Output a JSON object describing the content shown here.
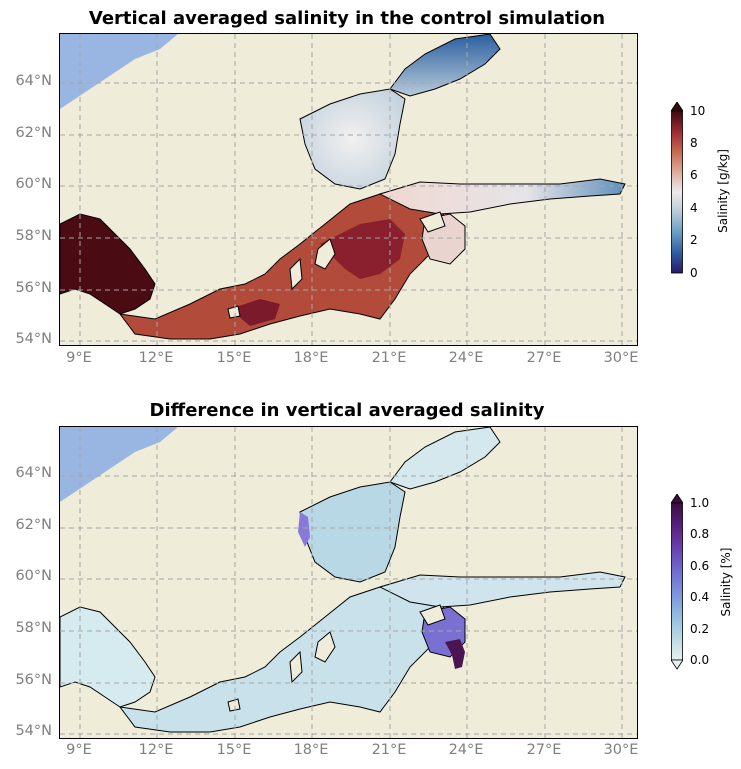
{
  "panels": [
    {
      "title": "Vertical averaged salinity in the control simulation",
      "lat_ticks": [
        "64°N",
        "62°N",
        "60°N",
        "58°N",
        "56°N",
        "54°N"
      ],
      "lon_ticks": [
        "9°E",
        "12°E",
        "15°E",
        "18°E",
        "21°E",
        "24°E",
        "27°E",
        "30°E"
      ],
      "colorbar": {
        "label": "Salinity [g/kg]",
        "ticks": [
          "0",
          "2",
          "4",
          "6",
          "8",
          "10"
        ],
        "extend": "max",
        "colormap": [
          "#2a186c",
          "#2e5ea2",
          "#6a9ec4",
          "#b6cbd9",
          "#eeeaea",
          "#dbab9b",
          "#c6684f",
          "#9b2931",
          "#3c0911"
        ]
      }
    },
    {
      "title": "Difference in vertical averaged salinity",
      "lat_ticks": [
        "64°N",
        "62°N",
        "60°N",
        "58°N",
        "56°N",
        "54°N"
      ],
      "lon_ticks": [
        "9°E",
        "12°E",
        "15°E",
        "18°E",
        "21°E",
        "24°E",
        "27°E",
        "30°E"
      ],
      "colorbar": {
        "label": "Salinity [%]",
        "ticks": [
          "0.0",
          "0.2",
          "0.4",
          "0.6",
          "0.8",
          "1.0"
        ],
        "extend": "both",
        "colormap": [
          "#e6f1f1",
          "#b9d9e0",
          "#93bce0",
          "#7c95dc",
          "#6f6cd0",
          "#6a41b0",
          "#5a2180",
          "#3b0d3e"
        ]
      }
    }
  ],
  "map_colors": {
    "land": "#efecda",
    "ocean": "#99b5e1",
    "coast": "#000000",
    "grid": "#a6a6a6"
  }
}
